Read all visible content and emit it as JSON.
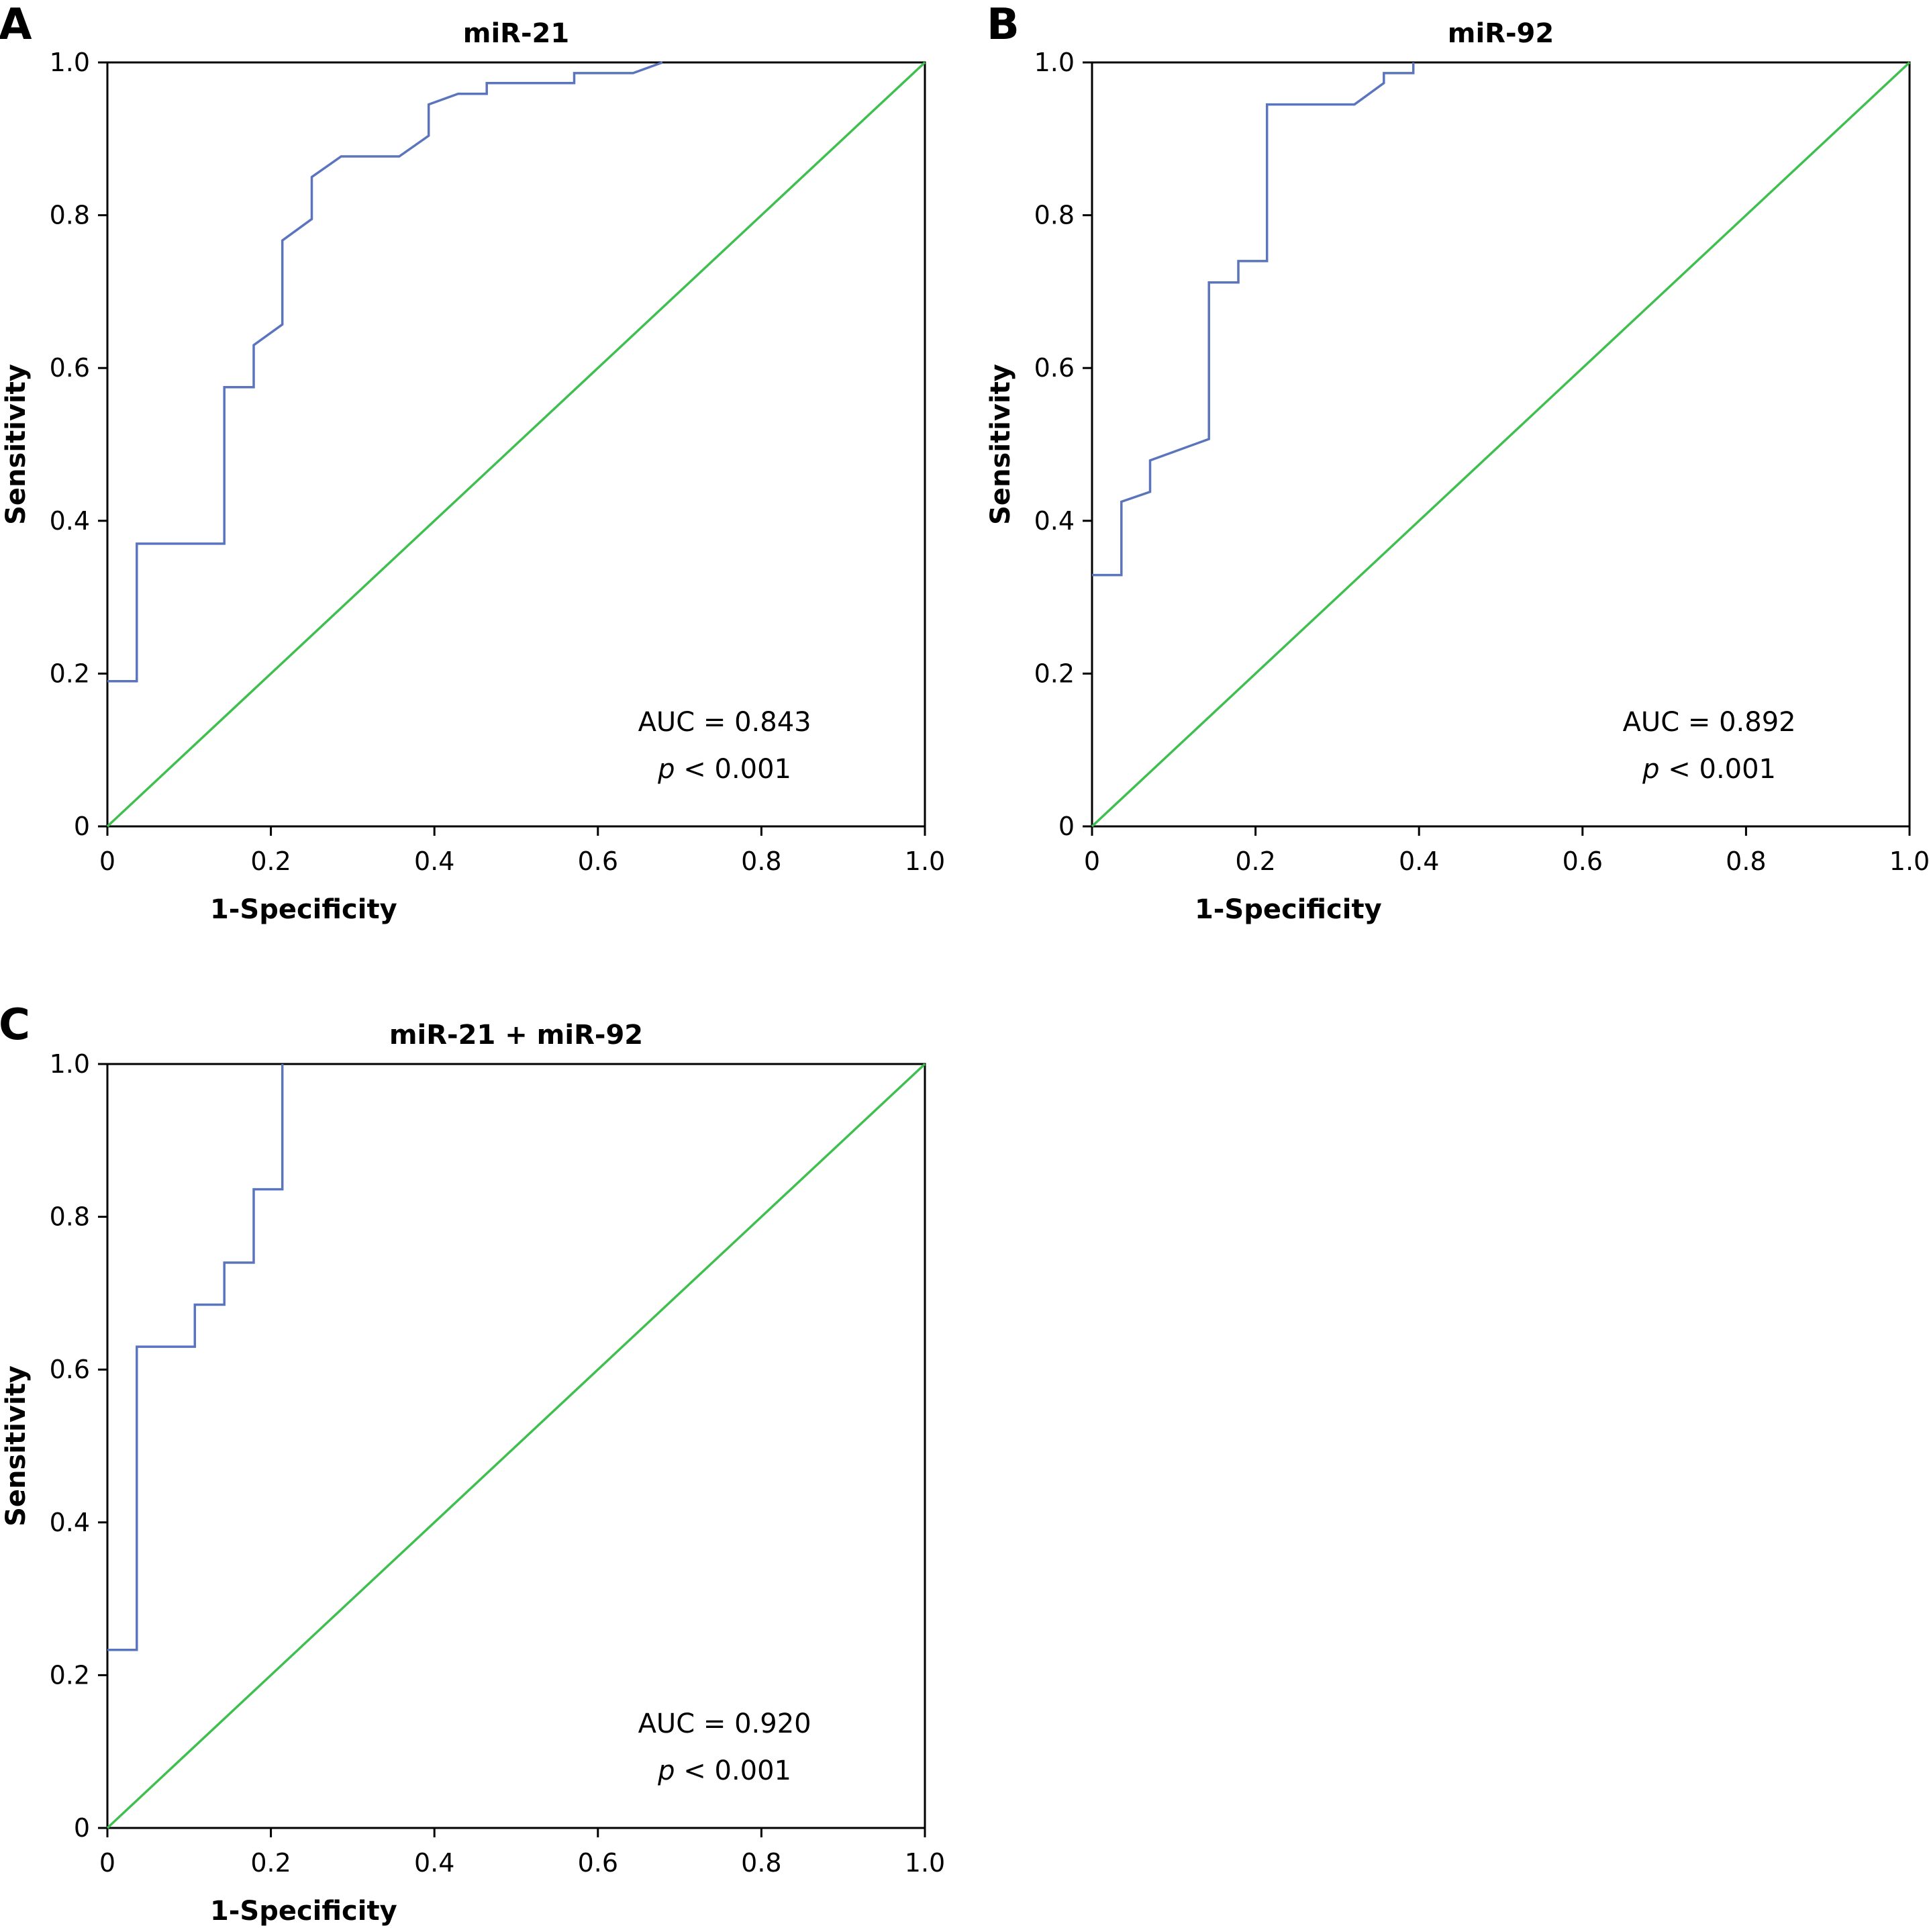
{
  "chart_data": [
    {
      "type": "line",
      "panel": "A",
      "title": "miR-21",
      "xlabel": "1-Specificity",
      "ylabel": "Sensitivity",
      "xlim": [
        0,
        1
      ],
      "ylim": [
        0,
        1
      ],
      "xticks": [
        "0",
        "0.2",
        "0.4",
        "0.6",
        "0.8",
        "1.0"
      ],
      "yticks": [
        "0",
        "0.2",
        "0.4",
        "0.6",
        "0.8",
        "1.0"
      ],
      "auc_text": "AUC = 0.843",
      "p_symbol": "p",
      "p_rest": " < 0.001",
      "grid": false,
      "colors": {
        "roc": "#5b74be",
        "reference": "#3fbf50"
      },
      "series": [
        {
          "role": "roc",
          "x": [
            0,
            0.036,
            0.036,
            0.143,
            0.143,
            0.179,
            0.179,
            0.214,
            0.214,
            0.25,
            0.25,
            0.286,
            0.357,
            0.393,
            0.393,
            0.429,
            0.464,
            0.464,
            0.571,
            0.571,
            0.643,
            0.679
          ],
          "y": [
            0.19,
            0.19,
            0.37,
            0.37,
            0.575,
            0.575,
            0.63,
            0.657,
            0.767,
            0.795,
            0.85,
            0.877,
            0.877,
            0.904,
            0.945,
            0.959,
            0.959,
            0.973,
            0.973,
            0.986,
            0.986,
            1.0
          ]
        },
        {
          "role": "reference",
          "x": [
            0,
            1
          ],
          "y": [
            0,
            1
          ]
        }
      ]
    },
    {
      "type": "line",
      "panel": "B",
      "title": "miR-92",
      "xlabel": "1-Specificity",
      "ylabel": "Sensitivity",
      "xlim": [
        0,
        1
      ],
      "ylim": [
        0,
        1
      ],
      "xticks": [
        "0",
        "0.2",
        "0.4",
        "0.6",
        "0.8",
        "1.0"
      ],
      "yticks": [
        "0",
        "0.2",
        "0.4",
        "0.6",
        "0.8",
        "1.0"
      ],
      "auc_text": "AUC = 0.892",
      "p_symbol": "p",
      "p_rest": " < 0.001",
      "grid": false,
      "colors": {
        "roc": "#5b74be",
        "reference": "#3fbf50"
      },
      "series": [
        {
          "role": "roc",
          "x": [
            0,
            0.036,
            0.036,
            0.071,
            0.071,
            0.143,
            0.143,
            0.179,
            0.179,
            0.214,
            0.214,
            0.321,
            0.357,
            0.357,
            0.393,
            0.393
          ],
          "y": [
            0.329,
            0.329,
            0.425,
            0.438,
            0.479,
            0.507,
            0.712,
            0.712,
            0.74,
            0.74,
            0.945,
            0.945,
            0.973,
            0.986,
            0.986,
            1.0
          ]
        },
        {
          "role": "reference",
          "x": [
            0,
            1
          ],
          "y": [
            0,
            1
          ]
        }
      ]
    },
    {
      "type": "line",
      "panel": "C",
      "title": "miR-21 + miR-92",
      "xlabel": "1-Specificity",
      "ylabel": "Sensitivity",
      "xlim": [
        0,
        1
      ],
      "ylim": [
        0,
        1
      ],
      "xticks": [
        "0",
        "0.2",
        "0.4",
        "0.6",
        "0.8",
        "1.0"
      ],
      "yticks": [
        "0",
        "0.2",
        "0.4",
        "0.6",
        "0.8",
        "1.0"
      ],
      "auc_text": "AUC = 0.920",
      "p_symbol": "p",
      "p_rest": " < 0.001",
      "grid": false,
      "colors": {
        "roc": "#5b74be",
        "reference": "#3fbf50"
      },
      "series": [
        {
          "role": "roc",
          "x": [
            0,
            0.036,
            0.036,
            0.107,
            0.107,
            0.143,
            0.143,
            0.179,
            0.179,
            0.214,
            0.214
          ],
          "y": [
            0.233,
            0.233,
            0.63,
            0.63,
            0.685,
            0.685,
            0.74,
            0.74,
            0.836,
            0.836,
            1.0
          ]
        },
        {
          "role": "reference",
          "x": [
            0,
            1
          ],
          "y": [
            0,
            1
          ]
        }
      ]
    }
  ]
}
